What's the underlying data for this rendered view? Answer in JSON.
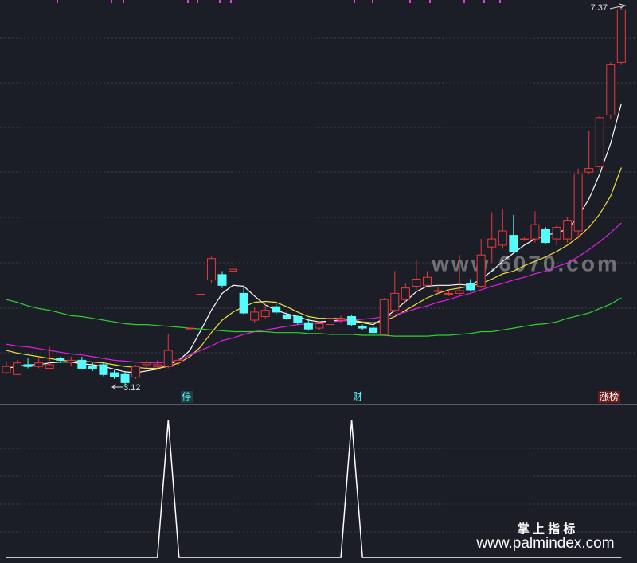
{
  "chart_data": {
    "type": "candlestick",
    "annotations": [
      "7.37",
      "3.12"
    ],
    "markers": [
      "停",
      "财",
      "涨榜"
    ],
    "watermarks": [
      "www.6070.com",
      "掌 上 指 标",
      "www.palmindex.com"
    ],
    "ylim": [
      2.95,
      7.46
    ],
    "up_color": "#e8383d",
    "down_color": "#54fcfc",
    "candles": {
      "open": [
        3.28,
        3.26,
        3.37,
        3.35,
        3.33,
        3.44,
        3.4,
        3.42,
        3.35,
        3.37,
        3.28,
        3.26,
        3.23,
        3.37,
        3.35,
        3.35,
        3.4,
        3.78,
        4.16,
        4.32,
        4.38,
        4.42,
        4.17,
        3.87,
        3.91,
        4.02,
        3.93,
        3.91,
        3.84,
        3.78,
        3.82,
        3.87,
        3.91,
        3.8,
        3.78,
        3.71,
        3.98,
        4.1,
        4.25,
        4.26,
        4.2,
        4.17,
        4.17,
        4.28,
        4.25,
        4.69,
        4.71,
        4.82,
        4.78,
        4.78,
        4.89,
        4.78,
        4.78,
        4.87,
        5.53,
        5.59,
        6.17,
        6.76
      ],
      "high": [
        3.4,
        3.42,
        3.44,
        3.46,
        3.57,
        3.46,
        3.46,
        3.46,
        3.39,
        3.4,
        3.31,
        3.3,
        3.37,
        3.42,
        3.42,
        3.71,
        3.44,
        3.78,
        4.16,
        4.58,
        4.42,
        4.5,
        4.26,
        4.02,
        4.05,
        4.07,
        3.98,
        3.93,
        3.89,
        3.85,
        3.91,
        3.92,
        3.93,
        3.82,
        3.82,
        4.12,
        4.42,
        4.28,
        4.55,
        4.42,
        4.26,
        4.21,
        4.6,
        4.33,
        4.78,
        5.08,
        5.12,
        5.05,
        4.8,
        5.09,
        4.91,
        4.94,
        5.03,
        5.57,
        5.99,
        6.17,
        6.76,
        7.37
      ],
      "low": [
        3.26,
        3.26,
        3.33,
        3.33,
        3.32,
        3.39,
        3.35,
        3.32,
        3.3,
        3.24,
        3.21,
        3.12,
        3.21,
        3.33,
        3.33,
        3.33,
        3.37,
        3.78,
        4.16,
        4.28,
        4.23,
        4.41,
        3.93,
        3.84,
        3.89,
        3.93,
        3.87,
        3.82,
        3.75,
        3.76,
        3.8,
        3.84,
        3.8,
        3.76,
        3.71,
        3.69,
        3.96,
        4.07,
        4.21,
        4.25,
        4.17,
        4.14,
        4.16,
        4.19,
        4.23,
        4.51,
        4.67,
        4.62,
        4.76,
        4.74,
        4.73,
        4.71,
        4.74,
        4.78,
        5.51,
        5.55,
        6.12,
        6.74
      ],
      "close": [
        3.35,
        3.39,
        3.35,
        3.39,
        3.37,
        3.42,
        3.42,
        3.33,
        3.33,
        3.26,
        3.24,
        3.17,
        3.35,
        3.39,
        3.37,
        3.53,
        3.42,
        3.78,
        4.16,
        4.56,
        4.26,
        4.44,
        3.95,
        3.96,
        3.98,
        3.96,
        3.89,
        3.84,
        3.77,
        3.83,
        3.89,
        3.89,
        3.82,
        3.78,
        3.73,
        4.1,
        4.17,
        4.23,
        4.33,
        4.35,
        4.2,
        4.17,
        4.2,
        4.21,
        4.6,
        4.78,
        4.87,
        4.64,
        4.78,
        4.94,
        4.74,
        4.91,
        4.99,
        5.51,
        5.57,
        6.14,
        6.74,
        7.35
      ]
    },
    "lines": [
      {
        "color": "#ffffff",
        "values": [
          3.33,
          3.35,
          3.37,
          3.37,
          3.39,
          3.4,
          3.4,
          3.38,
          3.37,
          3.35,
          3.32,
          3.29,
          3.28,
          3.3,
          3.32,
          3.37,
          3.42,
          3.53,
          3.75,
          3.98,
          4.17,
          4.26,
          4.25,
          4.14,
          4.04,
          3.98,
          3.94,
          3.91,
          3.87,
          3.85,
          3.86,
          3.87,
          3.86,
          3.84,
          3.82,
          3.89,
          3.98,
          4.08,
          4.19,
          4.25,
          4.26,
          4.26,
          4.27,
          4.26,
          4.33,
          4.42,
          4.53,
          4.62,
          4.71,
          4.78,
          4.82,
          4.85,
          4.89,
          5.03,
          5.23,
          5.51,
          5.85,
          6.3
        ]
      },
      {
        "color": "#f0e040",
        "values": [
          3.53,
          3.5,
          3.48,
          3.46,
          3.44,
          3.42,
          3.41,
          3.41,
          3.4,
          3.39,
          3.37,
          3.35,
          3.34,
          3.33,
          3.33,
          3.35,
          3.39,
          3.46,
          3.57,
          3.73,
          3.87,
          3.96,
          4.02,
          4.07,
          4.08,
          4.07,
          4.02,
          3.96,
          3.91,
          3.89,
          3.89,
          3.89,
          3.87,
          3.85,
          3.84,
          3.86,
          3.91,
          3.98,
          4.05,
          4.12,
          4.17,
          4.21,
          4.23,
          4.25,
          4.28,
          4.33,
          4.39,
          4.42,
          4.48,
          4.53,
          4.58,
          4.64,
          4.71,
          4.8,
          4.91,
          5.06,
          5.26,
          5.58
        ]
      },
      {
        "color": "#e020e0",
        "values": [
          3.6,
          3.58,
          3.57,
          3.55,
          3.53,
          3.51,
          3.49,
          3.48,
          3.46,
          3.44,
          3.42,
          3.41,
          3.4,
          3.39,
          3.39,
          3.4,
          3.42,
          3.48,
          3.53,
          3.58,
          3.64,
          3.67,
          3.71,
          3.74,
          3.76,
          3.78,
          3.8,
          3.82,
          3.83,
          3.84,
          3.85,
          3.86,
          3.87,
          3.88,
          3.89,
          3.91,
          3.93,
          3.96,
          4.0,
          4.03,
          4.07,
          4.1,
          4.14,
          4.17,
          4.21,
          4.25,
          4.28,
          4.32,
          4.35,
          4.39,
          4.42,
          4.47,
          4.51,
          4.58,
          4.66,
          4.75,
          4.85,
          4.96
        ]
      },
      {
        "color": "#30d030",
        "values": [
          4.1,
          4.07,
          4.03,
          4.0,
          3.98,
          3.95,
          3.92,
          3.91,
          3.89,
          3.87,
          3.85,
          3.83,
          3.82,
          3.82,
          3.81,
          3.8,
          3.79,
          3.78,
          3.77,
          3.76,
          3.75,
          3.74,
          3.74,
          3.74,
          3.74,
          3.73,
          3.73,
          3.73,
          3.72,
          3.72,
          3.71,
          3.71,
          3.71,
          3.7,
          3.7,
          3.7,
          3.69,
          3.69,
          3.69,
          3.69,
          3.7,
          3.7,
          3.71,
          3.72,
          3.74,
          3.74,
          3.76,
          3.78,
          3.8,
          3.82,
          3.83,
          3.85,
          3.89,
          3.92,
          3.95,
          4.0,
          4.05,
          4.12
        ]
      }
    ],
    "indicator": {
      "color": "#ffffff",
      "ylim": [
        0,
        1.1
      ],
      "values": [
        0,
        0,
        0,
        0,
        0,
        0,
        0,
        0,
        0,
        0,
        0,
        0,
        0,
        0,
        0,
        1,
        0,
        0,
        0,
        0,
        0,
        0,
        0,
        0,
        0,
        0,
        0,
        0,
        0,
        0,
        0,
        0,
        1,
        0,
        0,
        0,
        0,
        0,
        0,
        0,
        0,
        0,
        0,
        0,
        0,
        0,
        0,
        0,
        0,
        0,
        0,
        0,
        0,
        0,
        0,
        0,
        0,
        0
      ]
    }
  }
}
